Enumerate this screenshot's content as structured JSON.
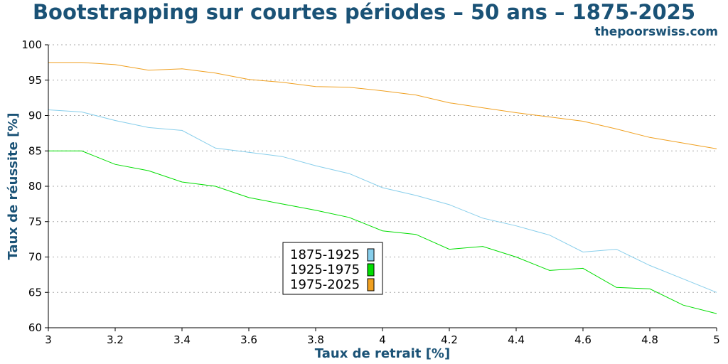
{
  "title": "Bootstrapping sur courtes périodes – 50 ans – 1875-2025",
  "subtitle": "thepoorswiss.com",
  "chart_data": {
    "type": "line",
    "xlabel": "Taux de retrait [%]",
    "ylabel": "Taux de réussite [%]",
    "xlim": [
      3,
      5
    ],
    "ylim": [
      60,
      100
    ],
    "xticks": [
      "3",
      "3.2",
      "3.4",
      "3.6",
      "3.8",
      "4",
      "4.2",
      "4.4",
      "4.6",
      "4.8",
      "5"
    ],
    "yticks": [
      "60",
      "65",
      "70",
      "75",
      "80",
      "85",
      "90",
      "95",
      "100"
    ],
    "grid": "horizontal dotted",
    "legend_position": "center",
    "x": [
      3.0,
      3.1,
      3.2,
      3.3,
      3.4,
      3.5,
      3.6,
      3.7,
      3.8,
      3.9,
      4.0,
      4.1,
      4.2,
      4.3,
      4.4,
      4.5,
      4.6,
      4.7,
      4.8,
      4.9,
      5.0
    ],
    "series": [
      {
        "name": "1875-1925",
        "color": "#87ceeb",
        "values": [
          90.8,
          90.5,
          89.3,
          88.3,
          87.9,
          85.4,
          84.8,
          84.2,
          82.9,
          81.8,
          79.8,
          78.7,
          77.4,
          75.5,
          74.4,
          73.1,
          70.7,
          71.1,
          68.8,
          66.9,
          65.0
        ]
      },
      {
        "name": "1925-1975",
        "color": "#00dd00",
        "values": [
          85.0,
          85.0,
          83.1,
          82.2,
          80.6,
          80.0,
          78.4,
          77.5,
          76.6,
          75.6,
          73.7,
          73.2,
          71.1,
          71.5,
          70.0,
          68.1,
          68.4,
          65.7,
          65.5,
          63.2,
          62.0
        ]
      },
      {
        "name": "1975-2025",
        "color": "#f0a020",
        "values": [
          97.5,
          97.5,
          97.2,
          96.4,
          96.6,
          96.0,
          95.1,
          94.7,
          94.1,
          94.0,
          93.5,
          92.9,
          91.8,
          91.1,
          90.4,
          89.8,
          89.2,
          88.1,
          86.9,
          86.1,
          85.3
        ]
      }
    ]
  }
}
